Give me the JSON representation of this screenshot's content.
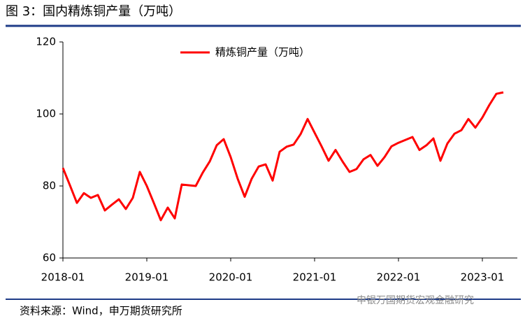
{
  "title": "图 3：国内精炼铜产量（万吨）",
  "source": "资料来源：Wind，申万期货研究所",
  "watermark": "申银万国期货宏观金融研究",
  "chart_data": {
    "type": "line",
    "categories": [
      "2018-01",
      null,
      null,
      null,
      null,
      null,
      null,
      null,
      null,
      null,
      null,
      null,
      "2019-01",
      null,
      null,
      null,
      null,
      null,
      null,
      null,
      null,
      null,
      null,
      null,
      "2020-01",
      null,
      null,
      null,
      null,
      null,
      null,
      null,
      null,
      null,
      null,
      null,
      "2021-01",
      null,
      null,
      null,
      null,
      null,
      null,
      null,
      null,
      null,
      null,
      null,
      "2022-01",
      null,
      null,
      null,
      null,
      null,
      null,
      null,
      null,
      null,
      null,
      null,
      "2023-01",
      null,
      null,
      null
    ],
    "series": [
      {
        "name": "精炼铜产量（万吨）",
        "color": "#ff0000",
        "values": [
          85,
          80.2,
          75.3,
          78,
          76.7,
          77.5,
          73.2,
          74.8,
          76.3,
          73.6,
          76.7,
          83.9,
          80,
          75.3,
          70.5,
          74,
          71,
          80.4,
          80.2,
          80,
          83.7,
          86.8,
          91.3,
          93,
          88,
          82,
          77,
          82,
          85.4,
          86,
          81.5,
          89.5,
          90.9,
          91.5,
          94.4,
          98.6,
          94.8,
          91,
          87,
          90,
          86.8,
          83.9,
          84.7,
          87.4,
          88.6,
          85.6,
          88,
          91,
          92,
          92.8,
          93.6,
          90,
          91.3,
          93.2,
          87,
          91.8,
          94.5,
          95.5,
          98.6,
          96.2,
          99,
          102.5,
          105.6,
          106
        ]
      }
    ],
    "ylim": [
      60,
      120
    ],
    "yticks": [
      60,
      80,
      100,
      120
    ],
    "legend": "top"
  }
}
